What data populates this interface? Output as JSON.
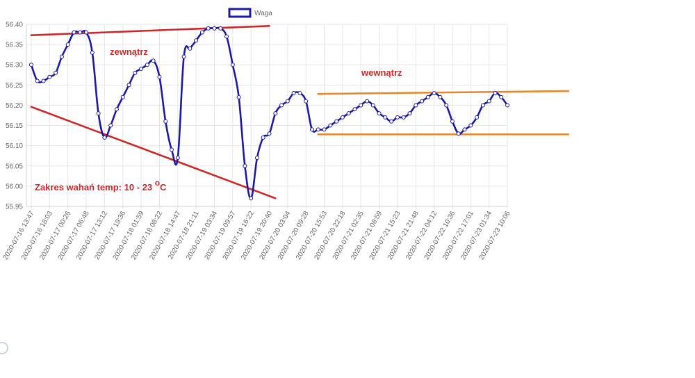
{
  "chart_data": {
    "type": "line",
    "ylim": [
      55.95,
      56.4
    ],
    "yticks": [
      "56.40",
      "56.35",
      "56.30",
      "56.25",
      "56.20",
      "56.15",
      "56.10",
      "56.05",
      "56.00",
      "55.95"
    ],
    "xticks": [
      "2020-07-16 13:47",
      "2020-07-16 18:03",
      "2020-07-17 00:26",
      "2020-07-17 06:48",
      "2020-07-17 13:12",
      "2020-07-17 19:36",
      "2020-07-18 01:59",
      "2020-07-18 08:22",
      "2020-07-18 14:47",
      "2020-07-18 21:11",
      "2020-07-19 03:34",
      "2020-07-19 09:57",
      "2020-07-19 16:22",
      "2020-07-19 20:40",
      "2020-07-20 03:04",
      "2020-07-20 09:28",
      "2020-07-20 15:53",
      "2020-07-20 22:18",
      "2020-07-21 02:35",
      "2020-07-21 08:59",
      "2020-07-21 15:23",
      "2020-07-21 21:48",
      "2020-07-22 04:12",
      "2020-07-22 10:36",
      "2020-07-22 17:01",
      "2020-07-23 01:34",
      "2020-07-23 10:06"
    ],
    "series": [
      {
        "name": "Waga",
        "color": "#1a1aa6",
        "values": [
          56.3,
          56.26,
          56.26,
          56.27,
          56.28,
          56.32,
          56.35,
          56.38,
          56.38,
          56.38,
          56.33,
          56.18,
          56.12,
          56.15,
          56.19,
          56.22,
          56.25,
          56.28,
          56.29,
          56.3,
          56.31,
          56.27,
          56.16,
          56.09,
          56.07,
          56.32,
          56.34,
          56.36,
          56.38,
          56.39,
          56.39,
          56.39,
          56.37,
          56.3,
          56.22,
          56.05,
          55.97,
          56.07,
          56.12,
          56.13,
          56.18,
          56.2,
          56.21,
          56.23,
          56.23,
          56.21,
          56.14,
          56.14,
          56.14,
          56.15,
          56.16,
          56.17,
          56.18,
          56.19,
          56.2,
          56.21,
          56.2,
          56.18,
          56.17,
          56.16,
          56.17,
          56.17,
          56.18,
          56.2,
          56.21,
          56.22,
          56.23,
          56.22,
          56.2,
          56.16,
          56.13,
          56.14,
          56.15,
          56.17,
          56.2,
          56.21,
          56.23,
          56.22,
          56.2
        ]
      }
    ],
    "trend_lines": [
      {
        "color": "#cc2a2a",
        "from": [
          0,
          56.373
        ],
        "to": [
          39,
          56.396
        ]
      },
      {
        "color": "#cc2a2a",
        "from": [
          0,
          56.196
        ],
        "to": [
          40,
          55.97
        ]
      },
      {
        "color": "#e8862a",
        "from": [
          47,
          56.228
        ],
        "to": [
          88,
          56.235
        ]
      },
      {
        "color": "#e8862a",
        "from": [
          47,
          56.128
        ],
        "to": [
          88,
          56.128
        ]
      }
    ],
    "annotations": [
      {
        "text": "zewnątrz",
        "color": "#cc2a2a"
      },
      {
        "text": "wewnątrz",
        "color": "#cc2a2a"
      },
      {
        "text": "Zakres wahań temp: 10 - 23 ",
        "sup": "o",
        "tail": "C",
        "color": "#cc2a2a"
      }
    ],
    "legend": {
      "label": "Waga",
      "position": "top-center"
    },
    "grid": true
  }
}
